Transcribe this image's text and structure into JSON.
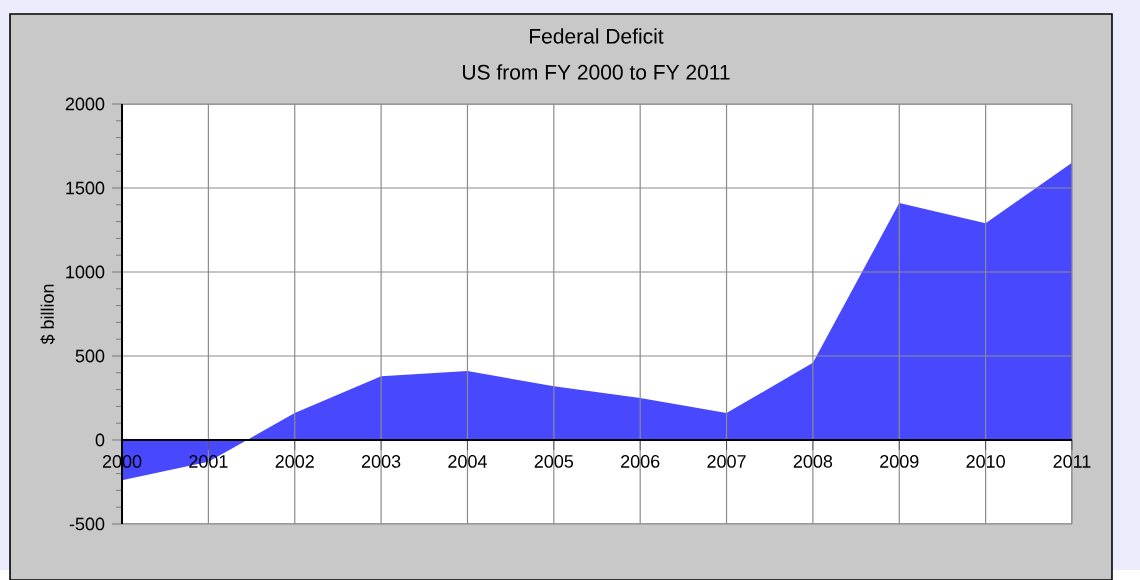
{
  "chart_data": {
    "type": "area",
    "title": "Federal Deficit",
    "subtitle": "US from FY 2000 to FY 2011",
    "ylabel": "$ billion",
    "x": [
      2000,
      2001,
      2002,
      2003,
      2004,
      2005,
      2006,
      2007,
      2008,
      2009,
      2010,
      2011
    ],
    "values": [
      -240,
      -130,
      160,
      380,
      410,
      320,
      250,
      160,
      460,
      1410,
      1290,
      1650
    ],
    "color": "#4848ff",
    "xlim": [
      2000,
      2011
    ],
    "xticks": [
      2000,
      2001,
      2002,
      2003,
      2004,
      2005,
      2006,
      2007,
      2008,
      2009,
      2010,
      2011
    ],
    "ylim": [
      -500,
      2000
    ],
    "yticks": [
      -500,
      0,
      500,
      1000,
      1500,
      2000
    ],
    "grid": true
  }
}
